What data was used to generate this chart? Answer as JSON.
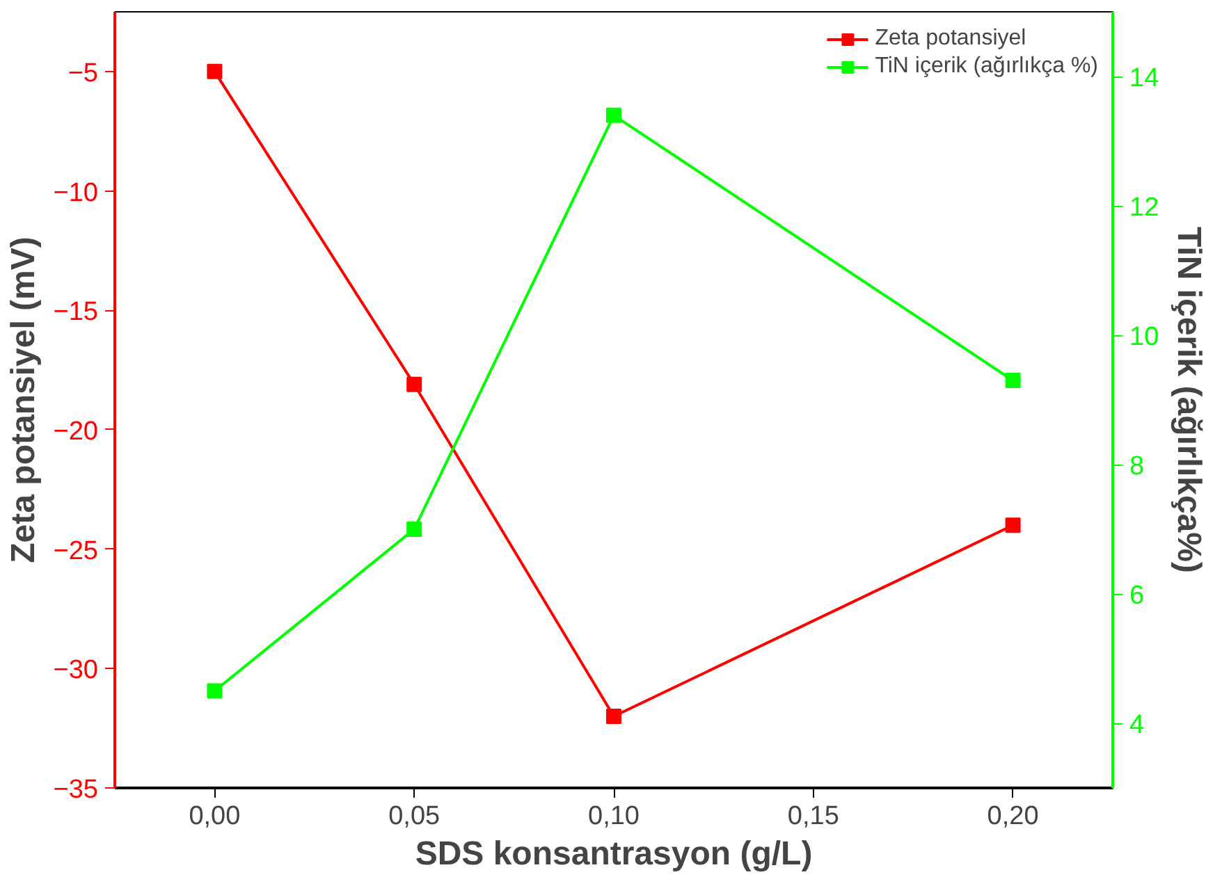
{
  "chart_data": {
    "type": "line",
    "xlabel": "SDS konsantrasyon (g/L)",
    "ylabel": "Zeta potansiyel (mV)",
    "y2label": "TiN içerik (ağırlıkça%)",
    "x": [
      0,
      0.05,
      0.1,
      0.2
    ],
    "series": [
      {
        "name": "Zeta potansiyel",
        "color": "#ff0000",
        "values": [
          -5,
          -18.1,
          -32,
          -24
        ]
      },
      {
        "name": "TiN içerik (ağırlıkça %)",
        "color": "#00ff00",
        "axis": "y2",
        "values": [
          4.5,
          7.0,
          13.4,
          9.3
        ]
      }
    ],
    "xlim": [
      -0.025,
      0.225
    ],
    "xticks": [
      {
        "value": 0,
        "label": "0,00"
      },
      {
        "value": 0.05,
        "label": "0,05"
      },
      {
        "value": 0.1,
        "label": "0,10"
      },
      {
        "value": 0.15,
        "label": "0,15"
      },
      {
        "value": 0.2,
        "label": "0,20"
      }
    ],
    "ylim": [
      -35,
      -2.5
    ],
    "yticks": [
      -35,
      -30,
      -25,
      -20,
      -15,
      -10,
      -5
    ],
    "y2lim": [
      3,
      15
    ],
    "y2ticks": [
      4,
      6,
      8,
      10,
      12,
      14
    ],
    "marker": "square",
    "line_style": "solid",
    "grid": false,
    "legend": "top right"
  }
}
